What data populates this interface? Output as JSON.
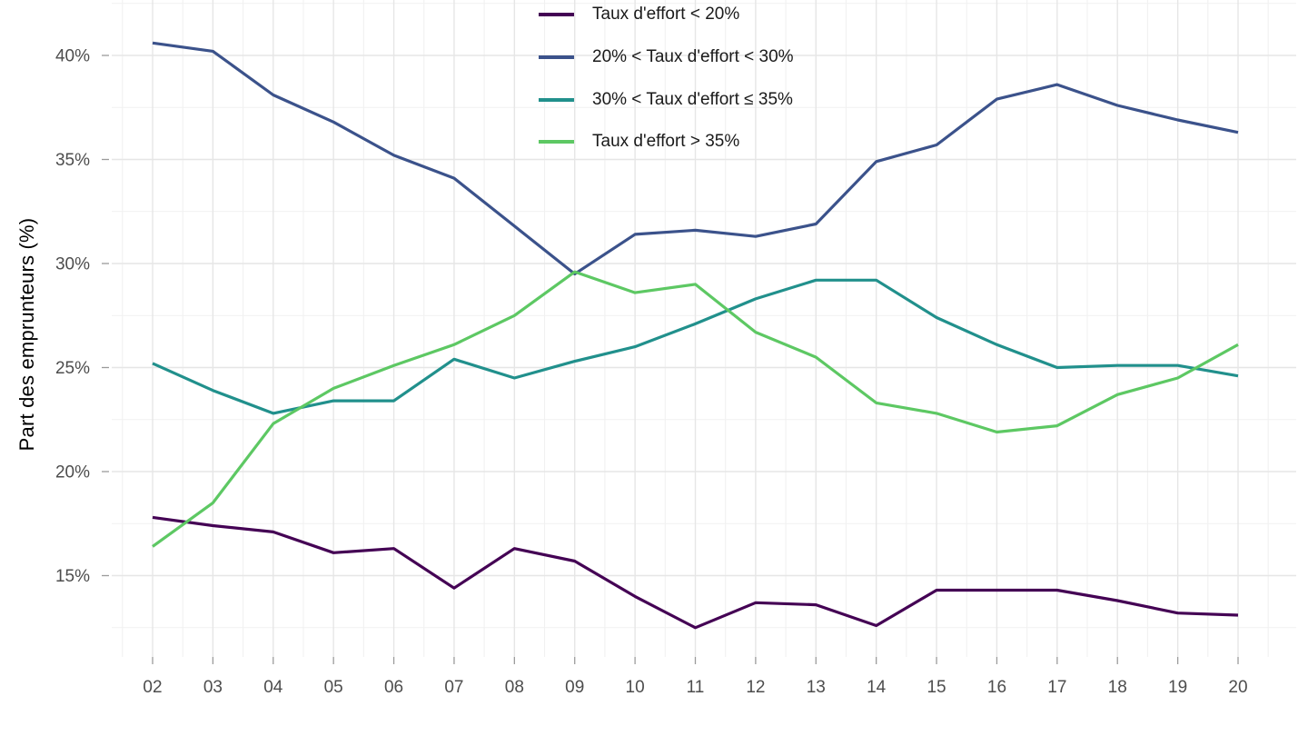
{
  "chart_data": {
    "type": "line",
    "xlabel": "",
    "ylabel": "Part des emprunteurs (%)",
    "grid": "major+minor, light gray on white",
    "legend_position": "top-center",
    "x": [
      "02",
      "03",
      "04",
      "05",
      "06",
      "07",
      "08",
      "09",
      "10",
      "11",
      "12",
      "13",
      "14",
      "15",
      "16",
      "17",
      "18",
      "19",
      "20"
    ],
    "y_axis": {
      "tick_values": [
        40,
        35,
        30,
        25,
        20,
        15
      ],
      "tick_labels": [
        "40%",
        "35%",
        "30%",
        "25%",
        "20%",
        "15%"
      ],
      "minor_tick_values": [
        42.5,
        37.5,
        32.5,
        27.5,
        22.5,
        17.5,
        12.5
      ]
    },
    "ylim": [
      11.1,
      42.7
    ],
    "series": [
      {
        "name": "Taux d'effort < 20%",
        "color": "#440154",
        "values": [
          17.8,
          17.4,
          17.1,
          16.1,
          16.3,
          14.4,
          16.3,
          15.7,
          14.0,
          12.5,
          13.7,
          13.6,
          12.6,
          14.3,
          14.3,
          14.3,
          13.8,
          13.2,
          13.1
        ]
      },
      {
        "name": "20% < Taux d'effort < 30%",
        "color": "#3B528B",
        "values": [
          40.6,
          40.2,
          38.1,
          36.8,
          35.2,
          34.1,
          31.8,
          29.5,
          31.4,
          31.6,
          31.3,
          31.9,
          34.9,
          35.7,
          37.9,
          38.6,
          37.6,
          36.9,
          36.3
        ]
      },
      {
        "name": "30% < Taux d'effort ≤ 35%",
        "color": "#21908C",
        "values": [
          25.2,
          23.9,
          22.8,
          23.4,
          23.4,
          25.4,
          24.5,
          25.3,
          26.0,
          27.1,
          28.3,
          29.2,
          29.2,
          27.4,
          26.1,
          25.0,
          25.1,
          25.1,
          24.6
        ]
      },
      {
        "name": "Taux d'effort > 35%",
        "color": "#5DC863",
        "values": [
          16.4,
          18.5,
          22.3,
          24.0,
          25.1,
          26.1,
          27.5,
          29.6,
          28.6,
          29.0,
          26.7,
          25.5,
          23.3,
          22.8,
          21.9,
          22.2,
          23.7,
          24.5,
          26.1
        ]
      }
    ],
    "style": {
      "axis_text_color": "#4D4D4D",
      "axis_title_color": "#000000",
      "grid_major_color": "#E6E6E6",
      "grid_minor_color": "#F1F1F1",
      "tick_mark_color": "#9B9B9B",
      "background": "#FFFFFF",
      "line_width": 3.2
    }
  }
}
